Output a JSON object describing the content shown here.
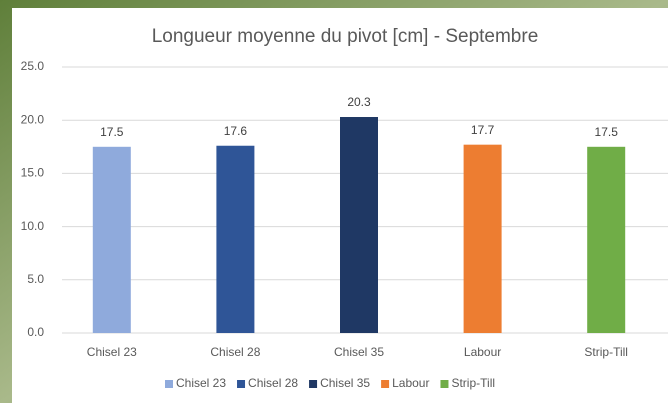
{
  "chart_data": {
    "type": "bar",
    "title": "Longueur moyenne du pivot [cm] - Septembre",
    "categories": [
      "Chisel 23",
      "Chisel 28",
      "Chisel 35",
      "Labour",
      "Strip-Till"
    ],
    "values": [
      17.5,
      17.6,
      20.3,
      17.7,
      17.5
    ],
    "colors": [
      "#8faadc",
      "#2f5597",
      "#1f3864",
      "#ed7d31",
      "#70ad47"
    ],
    "ylim": [
      0,
      25
    ],
    "yticks": [
      {
        "value": 0,
        "label": "0.0"
      },
      {
        "value": 5,
        "label": "5.0"
      },
      {
        "value": 10,
        "label": "10.0"
      },
      {
        "value": 15,
        "label": "15.0"
      },
      {
        "value": 20,
        "label": "20.0"
      },
      {
        "value": 25,
        "label": "25.0"
      }
    ],
    "grid": true,
    "legend": "bottom"
  }
}
